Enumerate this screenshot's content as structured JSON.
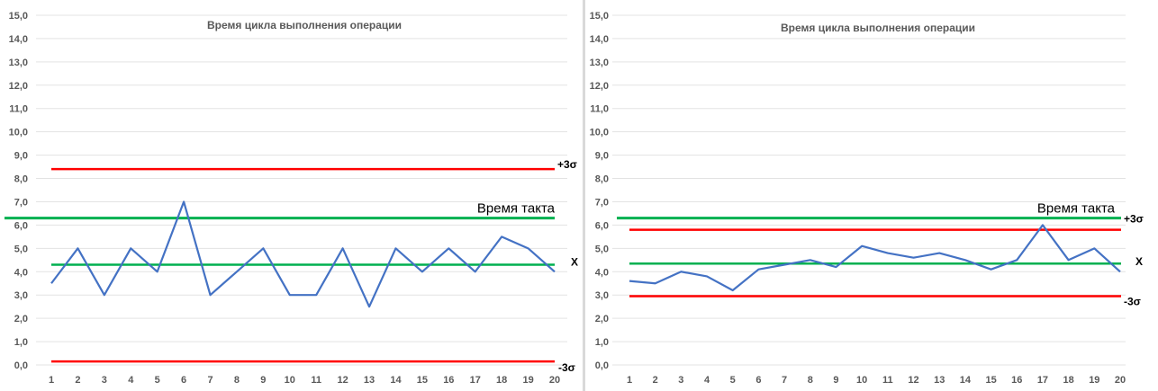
{
  "chart_data": [
    {
      "type": "line",
      "title": "Время цикла выполнения операции",
      "xlabel": "",
      "ylabel": "",
      "ylim": [
        0,
        15
      ],
      "y_ticks": [
        "0,0",
        "1,0",
        "2,0",
        "3,0",
        "4,0",
        "5,0",
        "6,0",
        "7,0",
        "8,0",
        "9,0",
        "10,0",
        "11,0",
        "12,0",
        "13,0",
        "14,0",
        "15,0"
      ],
      "x": [
        1,
        2,
        3,
        4,
        5,
        6,
        7,
        8,
        9,
        10,
        11,
        12,
        13,
        14,
        15,
        16,
        17,
        18,
        19,
        20
      ],
      "x_labels": [
        "1",
        "2",
        "3",
        "4",
        "5",
        "6",
        "7",
        "8",
        "9",
        "10",
        "11",
        "12",
        "13",
        "14",
        "15",
        "16",
        "17",
        "18",
        "19",
        "20"
      ],
      "grid": true,
      "series": [
        {
          "values": [
            3.5,
            5.0,
            3.0,
            5.0,
            4.0,
            7.0,
            3.0,
            4.0,
            5.0,
            3.0,
            3.0,
            5.0,
            2.5,
            5.0,
            4.0,
            5.0,
            4.0,
            5.5,
            5.0,
            4.0
          ],
          "color": "#4472c4"
        }
      ],
      "reference_lines": [
        {
          "label": "+3σ",
          "value": 8.4,
          "color": "#ff0000",
          "style": "small"
        },
        {
          "label": "Время такта",
          "value": 6.3,
          "color": "#00b050",
          "style": "large"
        },
        {
          "label": "X",
          "value": 4.3,
          "color": "#00b050",
          "style": "small"
        },
        {
          "label": "-3σ",
          "value": 0.15,
          "color": "#ff0000",
          "style": "small"
        }
      ]
    },
    {
      "type": "line",
      "title": "Время цикла выполнения операции",
      "xlabel": "",
      "ylabel": "",
      "ylim": [
        0,
        15
      ],
      "y_ticks": [
        "0,0",
        "1,0",
        "2,0",
        "3,0",
        "4,0",
        "5,0",
        "6,0",
        "7,0",
        "8,0",
        "9,0",
        "10,0",
        "11,0",
        "12,0",
        "13,0",
        "14,0",
        "15,0"
      ],
      "x": [
        1,
        2,
        3,
        4,
        5,
        6,
        7,
        8,
        9,
        10,
        11,
        12,
        13,
        14,
        15,
        16,
        17,
        18,
        19,
        20
      ],
      "x_labels": [
        "1",
        "2",
        "3",
        "4",
        "5",
        "6",
        "7",
        "8",
        "9",
        "10",
        "11",
        "12",
        "13",
        "14",
        "15",
        "16",
        "17",
        "18",
        "19",
        "20"
      ],
      "grid": true,
      "series": [
        {
          "values": [
            3.6,
            3.5,
            4.0,
            3.8,
            3.2,
            4.1,
            4.3,
            4.5,
            4.2,
            5.1,
            4.8,
            4.6,
            4.8,
            4.5,
            4.1,
            4.5,
            6.0,
            4.5,
            5.0,
            4.0
          ],
          "color": "#4472c4"
        }
      ],
      "reference_lines": [
        {
          "label": "Время такта",
          "value": 6.3,
          "color": "#00b050",
          "style": "large"
        },
        {
          "label": "+3σ",
          "value": 5.8,
          "color": "#ff0000",
          "style": "small"
        },
        {
          "label": "X",
          "value": 4.35,
          "color": "#00b050",
          "style": "small"
        },
        {
          "label": "-3σ",
          "value": 2.95,
          "color": "#ff0000",
          "style": "small"
        }
      ]
    }
  ]
}
